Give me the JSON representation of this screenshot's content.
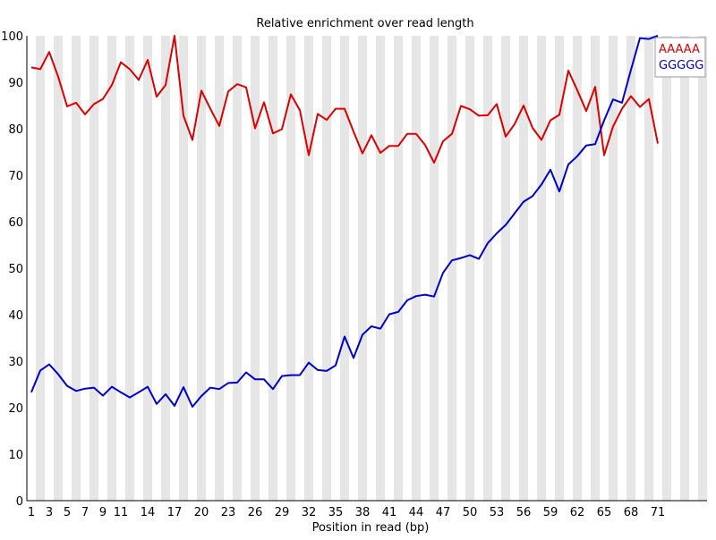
{
  "chart_data": {
    "type": "line",
    "title": "Relative enrichment over read length",
    "xlabel": "Position in read (bp)",
    "ylabel": "",
    "ylim": [
      0,
      100
    ],
    "yticks": [
      0,
      10,
      20,
      30,
      40,
      50,
      60,
      70,
      80,
      90,
      100
    ],
    "x_tick_labels": [
      "1",
      "3",
      "5",
      "7",
      "9",
      "11",
      "14",
      "17",
      "20",
      "23",
      "26",
      "29",
      "32",
      "35",
      "38",
      "41",
      "44",
      "47",
      "50",
      "53",
      "56",
      "59",
      "62",
      "65",
      "68",
      "71"
    ],
    "grid": "alternating vertical bands",
    "legend_position": "top-right",
    "x": [
      1,
      2,
      3,
      4,
      5,
      6,
      7,
      8,
      9,
      10,
      11,
      12,
      13,
      14,
      15,
      16,
      17,
      18,
      19,
      20,
      21,
      22,
      23,
      24,
      25,
      26,
      27,
      28,
      29,
      30,
      31,
      32,
      33,
      34,
      35,
      36,
      37,
      38,
      39,
      40,
      41,
      42,
      43,
      44,
      45,
      46,
      47,
      48,
      49,
      50,
      51,
      52,
      53,
      54,
      55,
      56,
      57,
      58,
      59,
      60,
      61,
      62,
      63,
      64,
      65,
      66,
      67,
      68,
      69,
      70,
      71
    ],
    "series": [
      {
        "name": "AAAAA",
        "color": "#dd0000",
        "values": [
          93.2,
          92.8,
          96.5,
          91.2,
          84.8,
          85.6,
          83.1,
          85.3,
          86.4,
          89.4,
          94.3,
          92.8,
          90.5,
          94.8,
          86.9,
          89.4,
          100,
          82.8,
          77.6,
          88.2,
          84.3,
          80.6,
          88.0,
          89.6,
          88.9,
          80.1,
          85.7,
          79.0,
          79.9,
          87.4,
          84.0,
          74.3,
          83.2,
          81.9,
          84.3,
          84.3,
          79.4,
          74.7,
          78.6,
          74.8,
          76.3,
          76.3,
          78.9,
          78.9,
          76.5,
          72.7,
          77.3,
          78.9,
          84.9,
          84.2,
          82.8,
          82.9,
          85.3,
          78.3,
          81.0,
          85.0,
          80.2,
          77.6,
          81.8,
          83.0,
          92.5,
          88.3,
          83.8,
          89.0,
          74.3,
          80.5,
          84.3,
          87.0,
          84.7,
          86.4,
          76.8
        ]
      },
      {
        "name": "GGGGG",
        "color": "#0000cc",
        "values": [
          23.3,
          28.0,
          29.3,
          27.2,
          24.7,
          23.6,
          24.1,
          24.3,
          22.6,
          24.5,
          23.3,
          22.2,
          23.3,
          24.5,
          20.8,
          22.9,
          20.4,
          24.4,
          20.2,
          22.5,
          24.3,
          24.0,
          25.3,
          25.4,
          27.6,
          26.1,
          26.1,
          24.0,
          26.8,
          27.0,
          27.0,
          29.7,
          28.1,
          27.9,
          29.1,
          35.3,
          30.7,
          35.7,
          37.5,
          37.0,
          40.1,
          40.6,
          43.1,
          44.0,
          44.3,
          43.9,
          49.0,
          51.7,
          52.2,
          52.8,
          52.0,
          55.4,
          57.5,
          59.3,
          61.8,
          64.3,
          65.5,
          68.0,
          71.2,
          66.5,
          72.3,
          74.1,
          76.4,
          76.7,
          81.8,
          86.3,
          85.6,
          92.7,
          99.5,
          99.3,
          100
        ]
      }
    ]
  }
}
